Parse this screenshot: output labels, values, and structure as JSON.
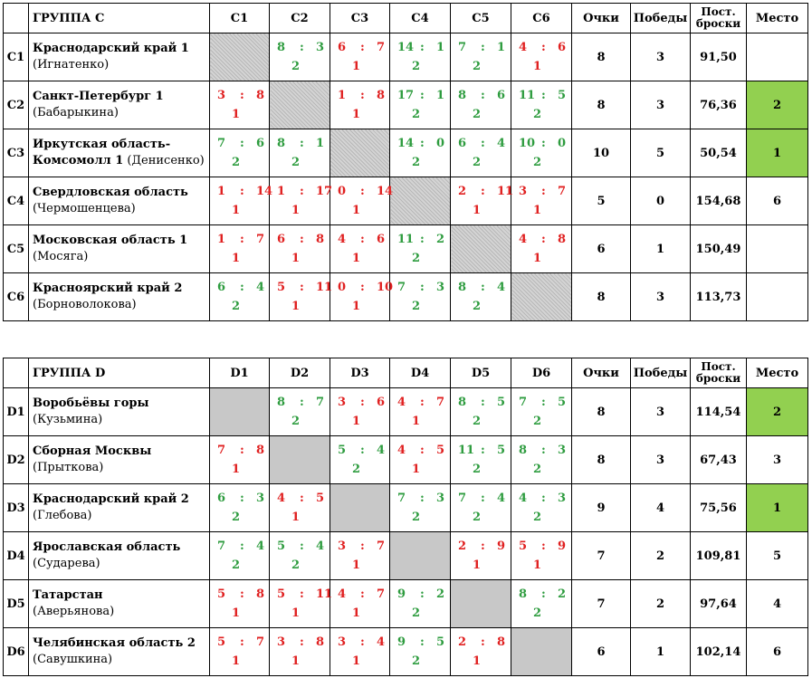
{
  "groups": [
    {
      "name": "ГРУППА C",
      "cols": [
        "C1",
        "C2",
        "C3",
        "C4",
        "C5",
        "C6"
      ],
      "headers": {
        "points": "Очки",
        "wins": "Победы",
        "shots_l1": "Пост.",
        "shots_l2": "броски",
        "place": "Место"
      },
      "rows": [
        {
          "id": "C1",
          "team": "Краснодарский край 1",
          "coach": "(Игнатенко)",
          "points": "8",
          "wins": "3",
          "shots": "91,50",
          "place": "",
          "highlight": false,
          "cells": [
            null,
            {
              "a": "8",
              "b": "3",
              "p": "2",
              "win": true
            },
            {
              "a": "6",
              "b": "7",
              "p": "1",
              "win": false
            },
            {
              "a": "14",
              "b": "1",
              "p": "2",
              "win": true
            },
            {
              "a": "7",
              "b": "1",
              "p": "2",
              "win": true
            },
            {
              "a": "4",
              "b": "6",
              "p": "1",
              "win": false
            }
          ]
        },
        {
          "id": "C2",
          "team": "Санкт-Петербург 1",
          "coach": "(Бабарыкина)",
          "points": "8",
          "wins": "3",
          "shots": "76,36",
          "place": "2",
          "highlight": true,
          "cells": [
            {
              "a": "3",
              "b": "8",
              "p": "1",
              "win": false
            },
            null,
            {
              "a": "1",
              "b": "8",
              "p": "1",
              "win": false
            },
            {
              "a": "17",
              "b": "1",
              "p": "2",
              "win": true
            },
            {
              "a": "8",
              "b": "6",
              "p": "2",
              "win": true
            },
            {
              "a": "11",
              "b": "5",
              "p": "2",
              "win": true
            }
          ]
        },
        {
          "id": "C3",
          "team": "Иркутская область-",
          "team2": "Комсомолл 1",
          "coach": "(Денисенко)",
          "points": "10",
          "wins": "5",
          "shots": "50,54",
          "place": "1",
          "highlight": true,
          "cells": [
            {
              "a": "7",
              "b": "6",
              "p": "2",
              "win": true
            },
            {
              "a": "8",
              "b": "1",
              "p": "2",
              "win": true
            },
            null,
            {
              "a": "14",
              "b": "0",
              "p": "2",
              "win": true
            },
            {
              "a": "6",
              "b": "4",
              "p": "2",
              "win": true
            },
            {
              "a": "10",
              "b": "0",
              "p": "2",
              "win": true
            }
          ]
        },
        {
          "id": "C4",
          "team": "Свердловская область",
          "coach": "(Чермошенцева)",
          "points": "5",
          "wins": "0",
          "shots": "154,68",
          "place": "6",
          "highlight": false,
          "cells": [
            {
              "a": "1",
              "b": "14",
              "p": "1",
              "win": false
            },
            {
              "a": "1",
              "b": "17",
              "p": "1",
              "win": false
            },
            {
              "a": "0",
              "b": "14",
              "p": "1",
              "win": false
            },
            null,
            {
              "a": "2",
              "b": "11",
              "p": "1",
              "win": false
            },
            {
              "a": "3",
              "b": "7",
              "p": "1",
              "win": false
            }
          ]
        },
        {
          "id": "C5",
          "team": "Московская область 1",
          "coach": "(Мосяга)",
          "points": "6",
          "wins": "1",
          "shots": "150,49",
          "place": "",
          "highlight": false,
          "cells": [
            {
              "a": "1",
              "b": "7",
              "p": "1",
              "win": false
            },
            {
              "a": "6",
              "b": "8",
              "p": "1",
              "win": false
            },
            {
              "a": "4",
              "b": "6",
              "p": "1",
              "win": false
            },
            {
              "a": "11",
              "b": "2",
              "p": "2",
              "win": true
            },
            null,
            {
              "a": "4",
              "b": "8",
              "p": "1",
              "win": false
            }
          ]
        },
        {
          "id": "C6",
          "team": "Красноярский край 2",
          "coach": "(Борноволокова)",
          "points": "8",
          "wins": "3",
          "shots": "113,73",
          "place": "",
          "highlight": false,
          "cells": [
            {
              "a": "6",
              "b": "4",
              "p": "2",
              "win": true
            },
            {
              "a": "5",
              "b": "11",
              "p": "1",
              "win": false
            },
            {
              "a": "0",
              "b": "10",
              "p": "1",
              "win": false
            },
            {
              "a": "7",
              "b": "3",
              "p": "2",
              "win": true
            },
            {
              "a": "8",
              "b": "4",
              "p": "2",
              "win": true
            },
            null
          ]
        }
      ]
    },
    {
      "name": "ГРУППА D",
      "cols": [
        "D1",
        "D2",
        "D3",
        "D4",
        "D5",
        "D6"
      ],
      "headers": {
        "points": "Очки",
        "wins": "Победы",
        "shots_l1": "Пост.",
        "shots_l2": "броски",
        "place": "Место"
      },
      "rows": [
        {
          "id": "D1",
          "team": "Воробьёвы горы",
          "coach": "(Кузьмина)",
          "points": "8",
          "wins": "3",
          "shots": "114,54",
          "place": "2",
          "highlight": true,
          "cells": [
            null,
            {
              "a": "8",
              "b": "7",
              "p": "2",
              "win": true
            },
            {
              "a": "3",
              "b": "6",
              "p": "1",
              "win": false
            },
            {
              "a": "4",
              "b": "7",
              "p": "1",
              "win": false
            },
            {
              "a": "8",
              "b": "5",
              "p": "2",
              "win": true
            },
            {
              "a": "7",
              "b": "5",
              "p": "2",
              "win": true
            }
          ]
        },
        {
          "id": "D2",
          "team": "Сборная Москвы",
          "coach": "(Прыткова)",
          "points": "8",
          "wins": "3",
          "shots": "67,43",
          "place": "3",
          "highlight": false,
          "cells": [
            {
              "a": "7",
              "b": "8",
              "p": "1",
              "win": false
            },
            null,
            {
              "a": "5",
              "b": "4",
              "p": "2",
              "win": true
            },
            {
              "a": "4",
              "b": "5",
              "p": "1",
              "win": false
            },
            {
              "a": "11",
              "b": "5",
              "p": "2",
              "win": true
            },
            {
              "a": "8",
              "b": "3",
              "p": "2",
              "win": true
            }
          ]
        },
        {
          "id": "D3",
          "team": "Краснодарский край 2",
          "coach": "(Глебова)",
          "points": "9",
          "wins": "4",
          "shots": "75,56",
          "place": "1",
          "highlight": true,
          "cells": [
            {
              "a": "6",
              "b": "3",
              "p": "2",
              "win": true
            },
            {
              "a": "4",
              "b": "5",
              "p": "1",
              "win": false
            },
            null,
            {
              "a": "7",
              "b": "3",
              "p": "2",
              "win": true
            },
            {
              "a": "7",
              "b": "4",
              "p": "2",
              "win": true
            },
            {
              "a": "4",
              "b": "3",
              "p": "2",
              "win": true
            }
          ]
        },
        {
          "id": "D4",
          "team": "Ярославская область",
          "coach": "(Сударева)",
          "points": "7",
          "wins": "2",
          "shots": "109,81",
          "place": "5",
          "highlight": false,
          "cells": [
            {
              "a": "7",
              "b": "4",
              "p": "2",
              "win": true
            },
            {
              "a": "5",
              "b": "4",
              "p": "2",
              "win": true
            },
            {
              "a": "3",
              "b": "7",
              "p": "1",
              "win": false
            },
            null,
            {
              "a": "2",
              "b": "9",
              "p": "1",
              "win": false
            },
            {
              "a": "5",
              "b": "9",
              "p": "1",
              "win": false
            }
          ]
        },
        {
          "id": "D5",
          "team": "Татарстан",
          "coach": "(Аверьянова)",
          "points": "7",
          "wins": "2",
          "shots": "97,64",
          "place": "4",
          "highlight": false,
          "cells": [
            {
              "a": "5",
              "b": "8",
              "p": "1",
              "win": false
            },
            {
              "a": "5",
              "b": "11",
              "p": "1",
              "win": false
            },
            {
              "a": "4",
              "b": "7",
              "p": "1",
              "win": false
            },
            {
              "a": "9",
              "b": "2",
              "p": "2",
              "win": true
            },
            null,
            {
              "a": "8",
              "b": "2",
              "p": "2",
              "win": true
            }
          ]
        },
        {
          "id": "D6",
          "team": "Челябинская область 2",
          "coach": "(Савушкина)",
          "points": "6",
          "wins": "1",
          "shots": "102,14",
          "place": "6",
          "highlight": false,
          "cells": [
            {
              "a": "5",
              "b": "7",
              "p": "1",
              "win": false
            },
            {
              "a": "3",
              "b": "8",
              "p": "1",
              "win": false
            },
            {
              "a": "3",
              "b": "4",
              "p": "1",
              "win": false
            },
            {
              "a": "9",
              "b": "5",
              "p": "2",
              "win": true
            },
            {
              "a": "2",
              "b": "8",
              "p": "1",
              "win": false
            },
            null
          ]
        }
      ]
    }
  ]
}
